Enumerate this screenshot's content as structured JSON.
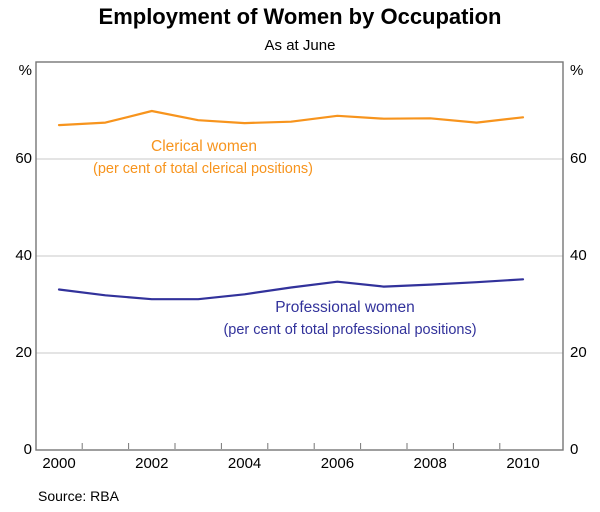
{
  "chart_data": {
    "type": "line",
    "title": "Employment of Women by Occupation",
    "subtitle": "As at June",
    "source": "Source: RBA",
    "unit": "%",
    "unit_label_both_sides": true,
    "x": [
      2000,
      2001,
      2002,
      2003,
      2004,
      2005,
      2006,
      2007,
      2008,
      2009,
      2010
    ],
    "xtick_labels": [
      "2000",
      "2002",
      "2004",
      "2006",
      "2008",
      "2010"
    ],
    "ylim": [
      0,
      80
    ],
    "yticks": [
      0,
      20,
      40,
      60
    ],
    "grid": "horizontal",
    "legend_position": "inline-annotations",
    "series": [
      {
        "name": "Clerical women",
        "annotation": "(per cent of total clerical positions)",
        "color": "#f7941d",
        "values": [
          67.0,
          67.5,
          69.9,
          68.0,
          67.4,
          67.7,
          68.9,
          68.3,
          68.4,
          67.5,
          68.6
        ]
      },
      {
        "name": "Professional women",
        "annotation": "(per cent of total professional positions)",
        "color": "#32329b",
        "values": [
          33.1,
          31.9,
          31.1,
          31.1,
          32.1,
          33.5,
          34.7,
          33.7,
          34.1,
          34.6,
          35.2
        ]
      }
    ],
    "frame_color": "#767676",
    "gridline_color": "#c9c9c9"
  }
}
